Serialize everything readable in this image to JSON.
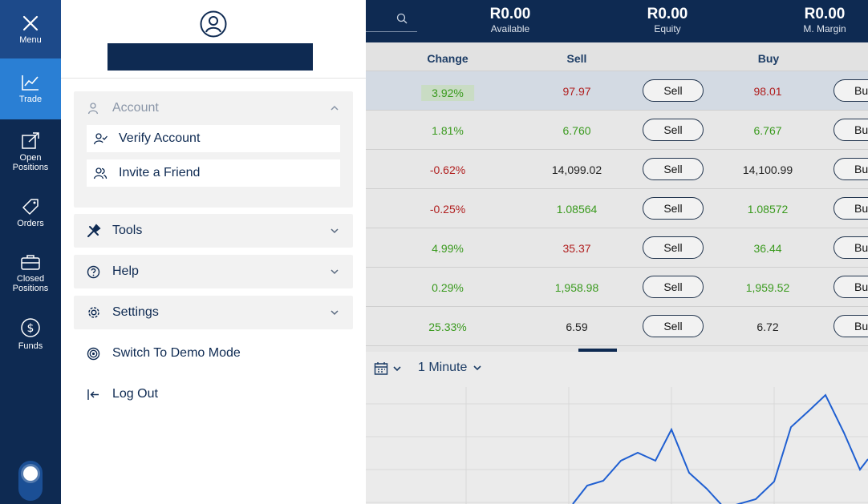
{
  "nav": {
    "menu": "Menu",
    "trade": "Trade",
    "open_positions": [
      "Open",
      "Positions"
    ],
    "orders": "Orders",
    "closed_positions": [
      "Closed",
      "Positions"
    ],
    "funds": "Funds"
  },
  "drawer": {
    "account": {
      "label": "Account",
      "expanded": true,
      "items": [
        "Verify Account",
        "Invite a Friend"
      ]
    },
    "tools": "Tools",
    "help": "Help",
    "settings": "Settings",
    "demo": "Switch To Demo Mode",
    "logout": "Log Out"
  },
  "header": {
    "available": {
      "value": "R0.00",
      "label": "Available"
    },
    "equity": {
      "value": "R0.00",
      "label": "Equity"
    },
    "margin": {
      "value": "R0.00",
      "label": "M. Margin"
    }
  },
  "table": {
    "columns": {
      "change": "Change",
      "sell": "Sell",
      "buy": "Buy"
    },
    "sell_button": "Sell",
    "buy_button": "Bu",
    "rows": [
      {
        "change": "3.92%",
        "sell": "97.97",
        "buy": "98.01",
        "change_color": "green",
        "sell_color": "red",
        "buy_color": "red",
        "selected": true
      },
      {
        "change": "1.81%",
        "sell": "6.760",
        "buy": "6.767",
        "change_color": "green",
        "sell_color": "green",
        "buy_color": "green"
      },
      {
        "change": "-0.62%",
        "sell": "14,099.02",
        "buy": "14,100.99",
        "change_color": "red",
        "sell_color": "dark",
        "buy_color": "dark"
      },
      {
        "change": "-0.25%",
        "sell": "1.08564",
        "buy": "1.08572",
        "change_color": "red",
        "sell_color": "green",
        "buy_color": "green"
      },
      {
        "change": "4.99%",
        "sell": "35.37",
        "buy": "36.44",
        "change_color": "green",
        "sell_color": "red",
        "buy_color": "green"
      },
      {
        "change": "0.29%",
        "sell": "1,958.98",
        "buy": "1,959.52",
        "change_color": "green",
        "sell_color": "green",
        "buy_color": "green"
      },
      {
        "change": "25.33%",
        "sell": "6.59",
        "buy": "6.72",
        "change_color": "green",
        "sell_color": "dark",
        "buy_color": "dark"
      }
    ]
  },
  "chart": {
    "timeframe": "1 Minute",
    "line_color": "#1f5fd1"
  }
}
